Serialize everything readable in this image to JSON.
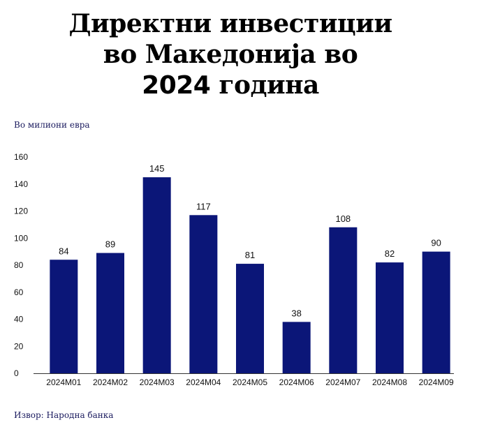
{
  "title": {
    "line1": "Директни инвестиции",
    "line2": "во Македонија во",
    "line3_year": "2024",
    "line3_rest": "година"
  },
  "unit_label": "Во милиони евра",
  "source_label": "Извор: Народна банка",
  "colors": {
    "bar": "#0b1678"
  },
  "chart_data": {
    "type": "bar",
    "title": "Директни инвестиции во Македонија во 2024 година",
    "ylabel": "Во милиони евра",
    "xlabel": "",
    "ylim": [
      0,
      160
    ],
    "yticks": [
      0,
      20,
      40,
      60,
      80,
      100,
      120,
      140,
      160
    ],
    "grid": false,
    "categories": [
      "2024M01",
      "2024M02",
      "2024M03",
      "2024M04",
      "2024M05",
      "2024M06",
      "2024M07",
      "2024M08",
      "2024M09"
    ],
    "values": [
      84,
      89,
      145,
      117,
      81,
      38,
      108,
      82,
      90
    ],
    "data_labels": [
      "84",
      "89",
      "145",
      "117",
      "81",
      "38",
      "108",
      "82",
      "90"
    ]
  }
}
